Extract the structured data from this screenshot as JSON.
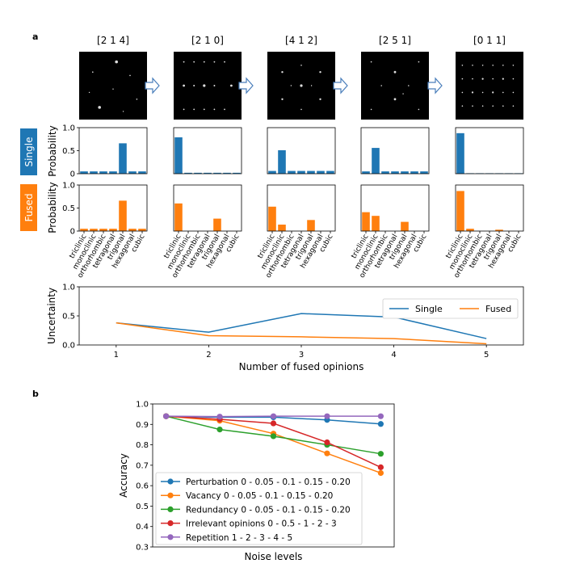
{
  "panel_labels": {
    "a": "a",
    "b": "b"
  },
  "colors": {
    "single": "#1f77b4",
    "fused": "#ff7f0e",
    "arrow": "#4a7ebb"
  },
  "side_labels": {
    "single": "Single",
    "fused": "Fused"
  },
  "prob_ylabel": "Probability",
  "prob_yticks": [
    "0",
    "0.5",
    "1.0"
  ],
  "classes": [
    "triclinic",
    "monoclinic",
    "orthorhombic",
    "tetragonal",
    "trigonal",
    "hexagonal",
    "cubic"
  ],
  "columns": [
    {
      "title": "[2 1 4]",
      "single": [
        0.05,
        0.05,
        0.05,
        0.05,
        0.66,
        0.05,
        0.05
      ],
      "fused": [
        0.05,
        0.05,
        0.05,
        0.05,
        0.66,
        0.05,
        0.05
      ]
    },
    {
      "title": "[2 1 0]",
      "single": [
        0.79,
        0.02,
        0.02,
        0.02,
        0.02,
        0.02,
        0.02
      ],
      "fused": [
        0.6,
        0.0,
        0.0,
        0.0,
        0.27,
        0.0,
        0.0
      ]
    },
    {
      "title": "[4 1 2]",
      "single": [
        0.06,
        0.51,
        0.06,
        0.06,
        0.06,
        0.06,
        0.06
      ],
      "fused": [
        0.53,
        0.14,
        0.0,
        0.0,
        0.24,
        0.0,
        0.0
      ]
    },
    {
      "title": "[2 5 1]",
      "single": [
        0.05,
        0.56,
        0.05,
        0.05,
        0.05,
        0.05,
        0.05
      ],
      "fused": [
        0.41,
        0.33,
        0.0,
        0.0,
        0.2,
        0.0,
        0.0
      ]
    },
    {
      "title": "[0 1 1]",
      "single": [
        0.88,
        0.01,
        0.01,
        0.01,
        0.01,
        0.01,
        0.01
      ],
      "fused": [
        0.87,
        0.05,
        0.0,
        0.0,
        0.03,
        0.0,
        0.0
      ]
    }
  ],
  "chart_data": [
    {
      "type": "line",
      "title": "",
      "xlabel": "Number of fused opinions",
      "ylabel": "Uncertainty",
      "x": [
        1,
        2,
        3,
        4,
        5
      ],
      "xlim": [
        0.6,
        5.4
      ],
      "ylim": [
        0,
        1.0
      ],
      "yticks": [
        "0.0",
        "0.5",
        "1.0"
      ],
      "series": [
        {
          "name": "Single",
          "values": [
            0.38,
            0.22,
            0.54,
            0.48,
            0.11
          ]
        },
        {
          "name": "Fused",
          "values": [
            0.38,
            0.16,
            0.14,
            0.11,
            0.02
          ]
        }
      ],
      "legend": "top-right"
    },
    {
      "type": "line",
      "title": "",
      "xlabel": "Noise levels",
      "ylabel": "Accuracy",
      "x": [
        1,
        2,
        3,
        4,
        5
      ],
      "ylim": [
        0.3,
        1.0
      ],
      "yticks": [
        "0.3",
        "0.4",
        "0.5",
        "0.6",
        "0.7",
        "0.8",
        "0.9",
        "1.0"
      ],
      "series": [
        {
          "name": "Perturbation 0 - 0.05 - 0.1 - 0.15 - 0.20",
          "color": "#1f77b4",
          "values": [
            0.94,
            0.935,
            0.935,
            0.922,
            0.902
          ]
        },
        {
          "name": "Vacancy 0 - 0.05 - 0.1 - 0.15 - 0.20",
          "color": "#ff7f0e",
          "values": [
            0.94,
            0.918,
            0.855,
            0.758,
            0.662
          ]
        },
        {
          "name": "Redundancy 0 - 0.05 - 0.1 - 0.15 - 0.20",
          "color": "#2ca02c",
          "values": [
            0.94,
            0.875,
            0.842,
            0.8,
            0.756
          ]
        },
        {
          "name": "Irrelevant opinions 0 - 0.5 - 1 - 2 - 3",
          "color": "#d62728",
          "values": [
            0.94,
            0.925,
            0.905,
            0.812,
            0.69
          ]
        },
        {
          "name": "Repetition 1 - 2 - 3 - 4 - 5",
          "color": "#9467bd",
          "values": [
            0.94,
            0.938,
            0.94,
            0.94,
            0.94
          ]
        }
      ],
      "legend": "lower-left"
    }
  ]
}
